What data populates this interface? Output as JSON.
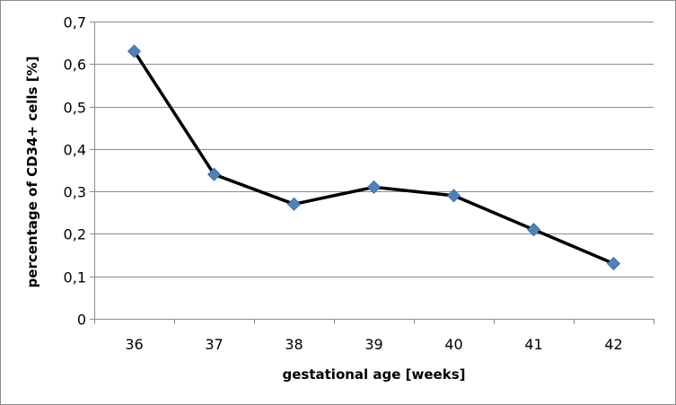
{
  "chart_data": {
    "type": "line",
    "title": "",
    "xlabel": "gestational age [weeks]",
    "ylabel": "percentage of CD34+ cells [%]",
    "categories": [
      "36",
      "37",
      "38",
      "39",
      "40",
      "41",
      "42"
    ],
    "series": [
      {
        "values": [
          0.63,
          0.34,
          0.27,
          0.31,
          0.29,
          0.21,
          0.13
        ]
      }
    ],
    "ylim": [
      0,
      0.7
    ],
    "yticks": [
      0,
      0.1,
      0.2,
      0.3,
      0.4,
      0.5,
      0.6,
      0.7
    ],
    "ytick_labels": [
      "0",
      "0,1",
      "0,2",
      "0,3",
      "0,4",
      "0,5",
      "0,6",
      "0,7"
    ],
    "grid": "horizontal",
    "legend": "none",
    "colors": {
      "line": "#000000",
      "marker": "#4f81bd",
      "gridline": "#8c8c8c",
      "axis": "#8c8c8c"
    }
  }
}
